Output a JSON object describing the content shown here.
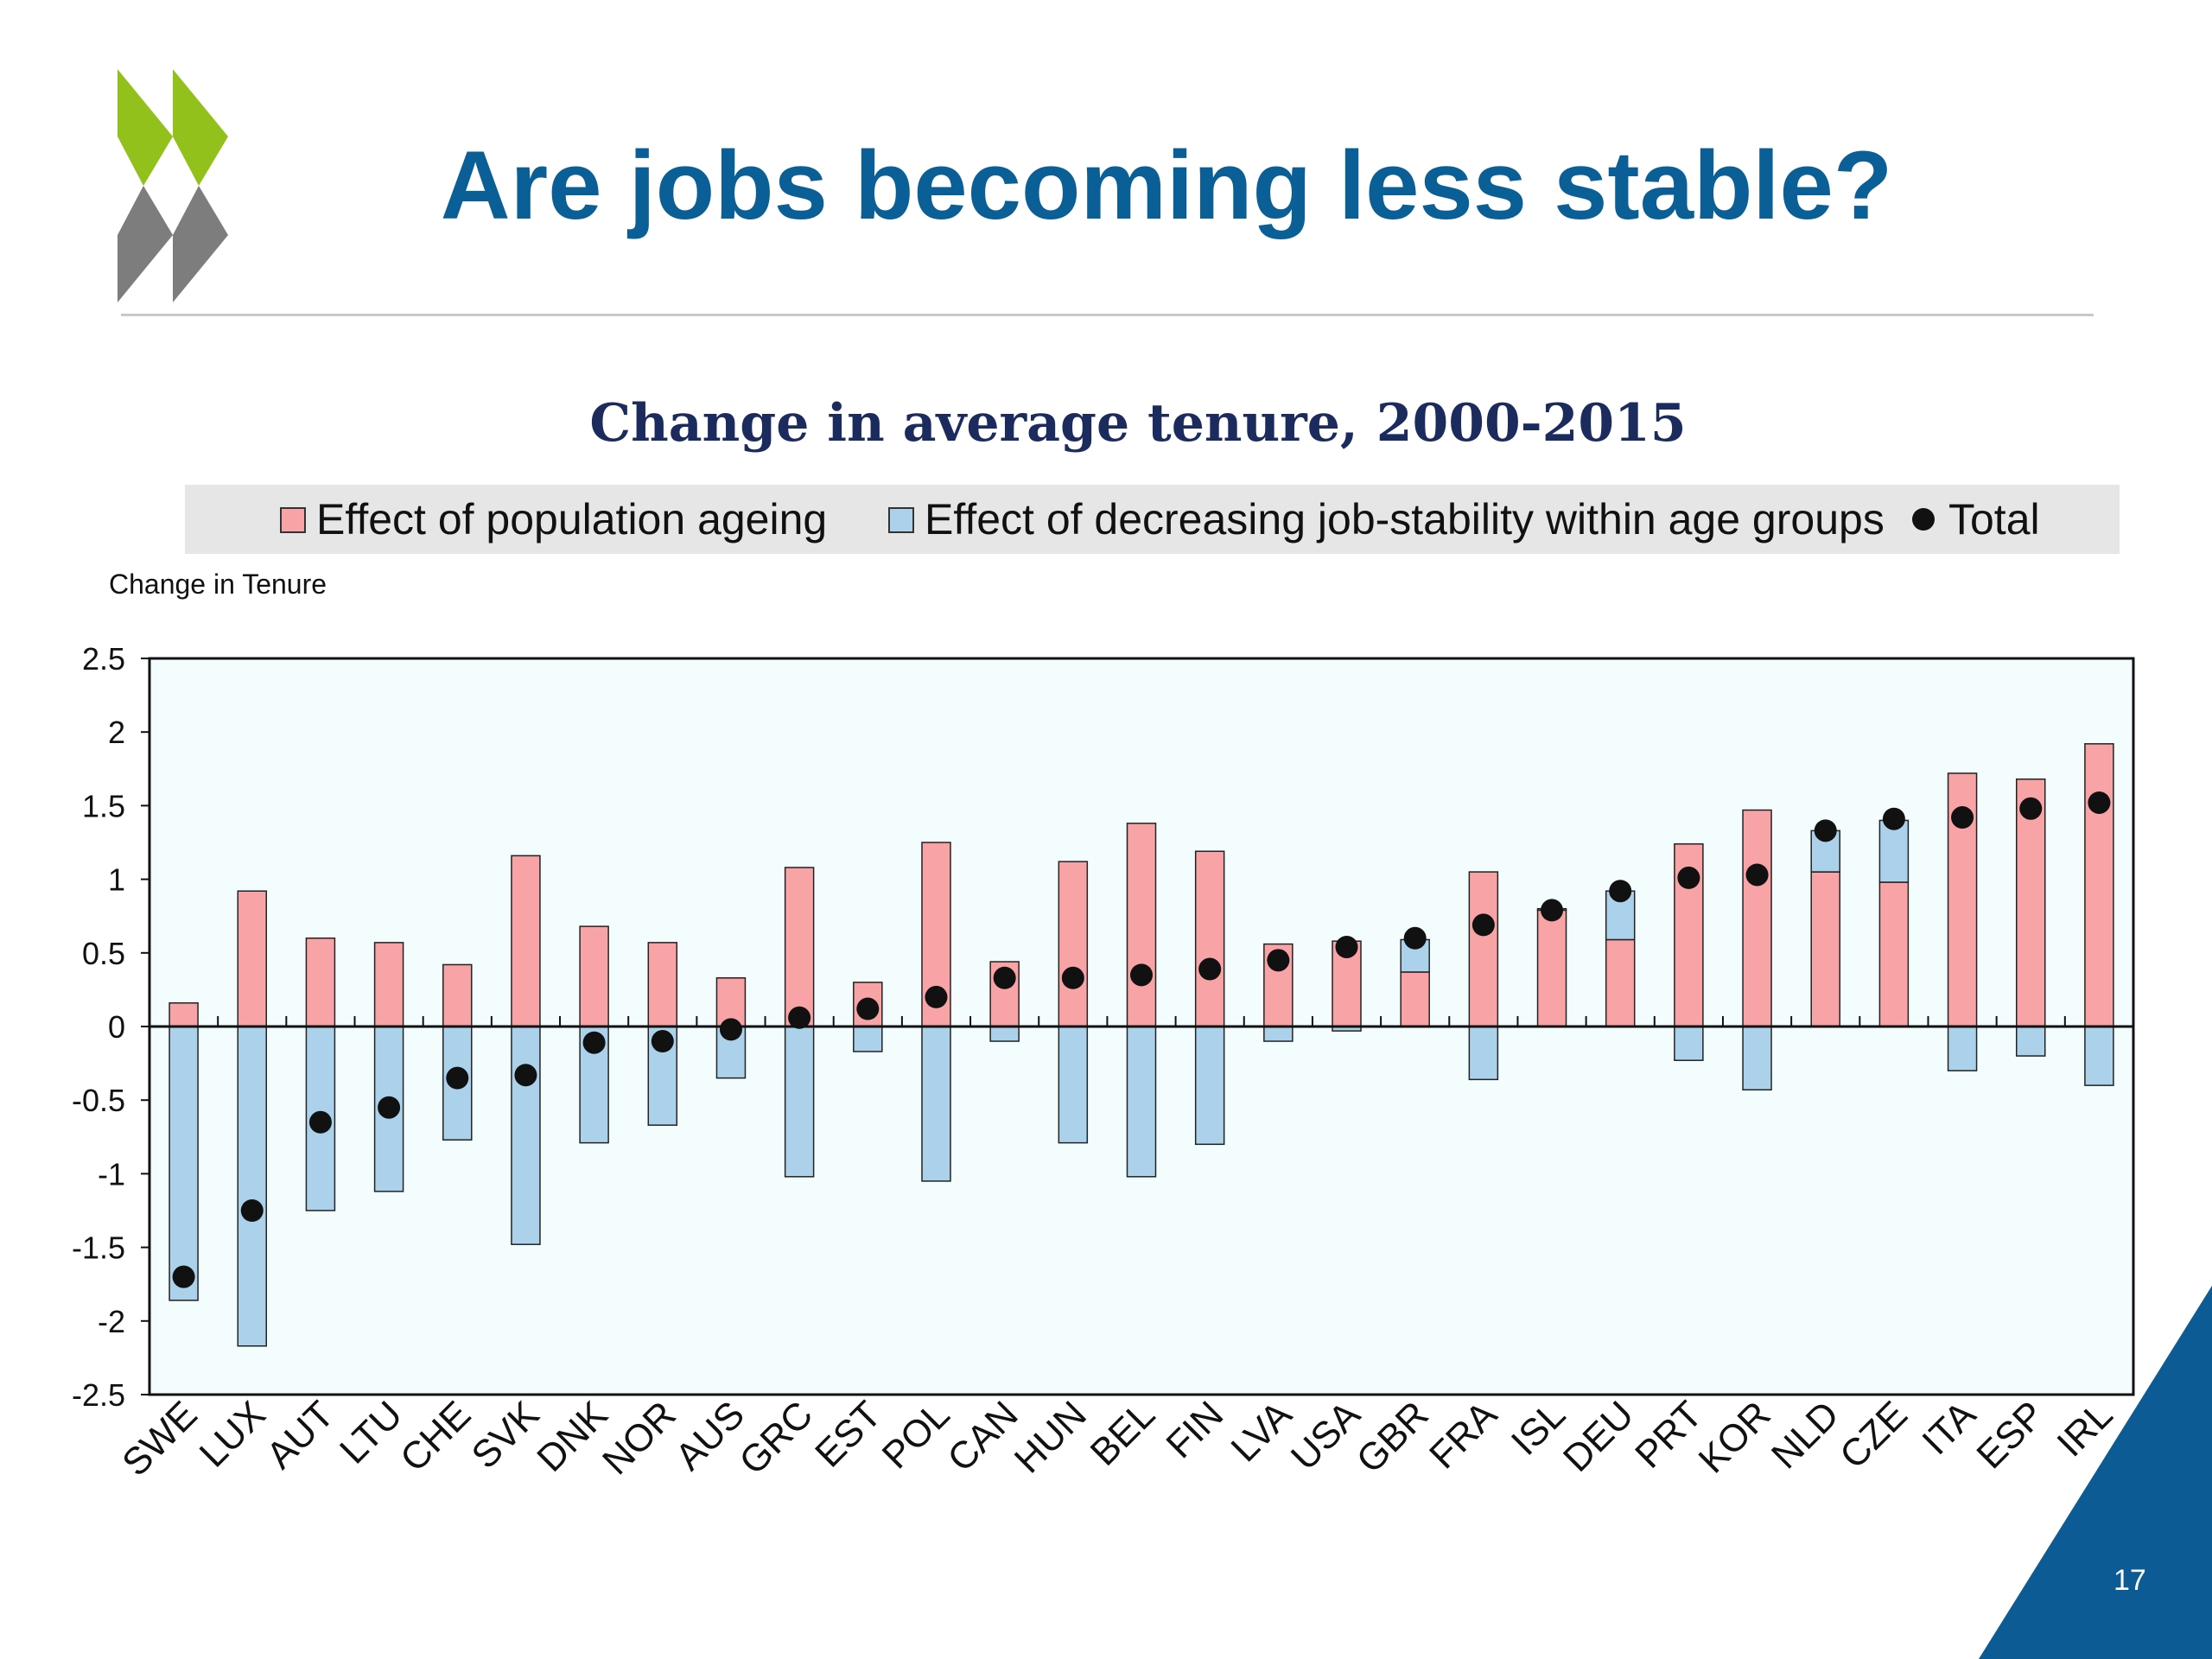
{
  "slide": {
    "title": "Are jobs becoming less stable?",
    "page_number": "17",
    "colors": {
      "title": "#0b5f97",
      "logo_green": "#93c11c",
      "logo_gray": "#7d7d7d",
      "corner": "#0c5b94"
    }
  },
  "chart_data": {
    "type": "bar",
    "stacked": true,
    "title": "Change in average tenure, 2000-2015",
    "ylabel": "Change in Tenure",
    "xlabel": "",
    "ylim": [
      -2.5,
      2.5
    ],
    "yticks": [
      "2.5",
      "2",
      "1.5",
      "1",
      "0.5",
      "0",
      "-0.5",
      "-1",
      "-1.5",
      "-2",
      "-2.5"
    ],
    "grid": false,
    "legend_position": "top",
    "categories": [
      "SWE",
      "LUX",
      "AUT",
      "LTU",
      "CHE",
      "SVK",
      "DNK",
      "NOR",
      "AUS",
      "GRC",
      "EST",
      "POL",
      "CAN",
      "HUN",
      "BEL",
      "FIN",
      "LVA",
      "USA",
      "GBR",
      "FRA",
      "ISL",
      "DEU",
      "PRT",
      "KOR",
      "NLD",
      "CZE",
      "ITA",
      "ESP",
      "IRL"
    ],
    "series": [
      {
        "name": "Effect of population ageing",
        "kind": "bar",
        "color": "#f8a3a6",
        "values": [
          0.16,
          0.92,
          0.6,
          0.57,
          0.42,
          1.16,
          0.68,
          0.57,
          0.33,
          1.08,
          0.3,
          1.25,
          0.44,
          1.12,
          1.38,
          1.19,
          0.56,
          0.58,
          0.37,
          1.05,
          0.79,
          0.59,
          1.24,
          1.47,
          1.05,
          0.98,
          1.72,
          1.68,
          1.92
        ]
      },
      {
        "name": "Effect of decreasing job-stability within age groups",
        "kind": "bar",
        "color": "#abd2ea",
        "values": [
          -1.86,
          -2.17,
          -1.25,
          -1.12,
          -0.77,
          -1.48,
          -0.79,
          -0.67,
          -0.35,
          -1.02,
          -0.17,
          -1.05,
          -0.1,
          -0.79,
          -1.02,
          -0.8,
          -0.1,
          -0.03,
          0.22,
          -0.36,
          0.01,
          0.33,
          -0.23,
          -0.43,
          0.28,
          0.42,
          -0.3,
          -0.2,
          -0.4
        ]
      },
      {
        "name": "Total",
        "kind": "dot",
        "color": "#111111",
        "values": [
          -1.7,
          -1.25,
          -0.65,
          -0.55,
          -0.35,
          -0.33,
          -0.11,
          -0.1,
          -0.02,
          0.06,
          0.12,
          0.2,
          0.33,
          0.33,
          0.35,
          0.39,
          0.45,
          0.54,
          0.6,
          0.69,
          0.79,
          0.92,
          1.01,
          1.03,
          1.33,
          1.41,
          1.42,
          1.48,
          1.52
        ]
      }
    ]
  }
}
